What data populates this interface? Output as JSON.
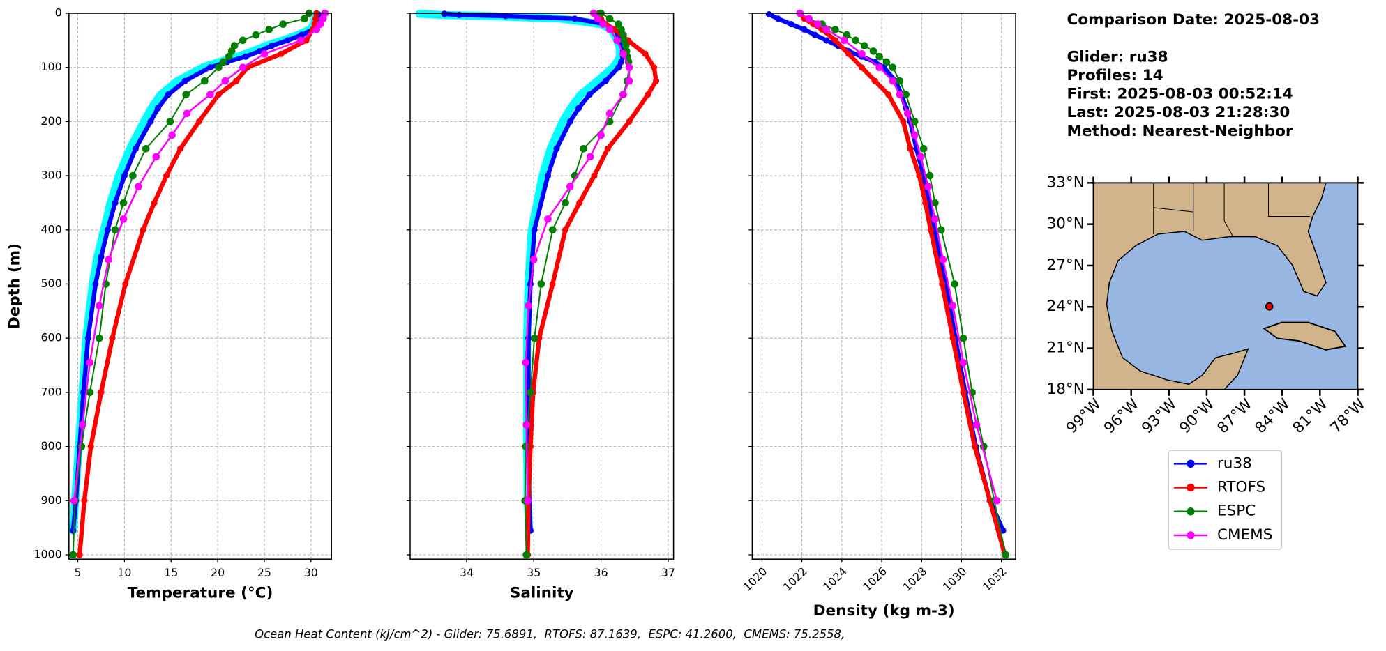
{
  "chart_data": [
    {
      "type": "line",
      "xlabel": "Temperature (°C)",
      "ylabel": "Depth (m)",
      "xlim": [
        4.05,
        32.2
      ],
      "ylim": [
        1008,
        0
      ],
      "xticks": [
        5,
        10,
        15,
        20,
        25,
        30
      ],
      "yticks": [
        0,
        100,
        200,
        300,
        400,
        500,
        600,
        700,
        800,
        900,
        1000
      ],
      "ytick_labels": true,
      "grid": true,
      "series": [
        {
          "color": "#00ffff",
          "y": [
            2,
            10,
            20,
            30,
            40,
            50,
            60,
            70,
            80,
            90,
            100,
            125,
            150,
            175,
            200,
            250,
            300,
            350,
            400,
            450,
            500,
            600,
            700,
            800,
            900,
            955
          ],
          "values": [
            30.6,
            30.5,
            30.3,
            29.9,
            28.6,
            27.0,
            25.2,
            23.8,
            22.2,
            20.2,
            18.4,
            15.7,
            13.9,
            12.9,
            12.1,
            10.6,
            9.4,
            8.5,
            7.8,
            7.1,
            6.6,
            5.9,
            5.5,
            5.1,
            4.7,
            4.5
          ]
        },
        {
          "name": "ru38",
          "color": "#0000ff",
          "y": [
            2,
            10,
            20,
            30,
            40,
            50,
            60,
            70,
            80,
            90,
            100,
            125,
            150,
            175,
            200,
            250,
            300,
            350,
            400,
            450,
            500,
            600,
            700,
            800,
            900,
            955
          ],
          "values": [
            30.8,
            30.7,
            30.5,
            30.2,
            29.0,
            27.5,
            25.8,
            24.5,
            23.0,
            21.0,
            19.2,
            16.5,
            14.7,
            13.6,
            12.8,
            11.2,
            10.0,
            9.0,
            8.2,
            7.5,
            6.9,
            6.1,
            5.6,
            5.2,
            4.8,
            4.5
          ]
        },
        {
          "name": "RTOFS",
          "color": "#ff0000",
          "y": [
            0,
            10,
            20,
            30,
            50,
            75,
            100,
            125,
            150,
            200,
            250,
            300,
            350,
            400,
            500,
            600,
            700,
            800,
            900,
            1000
          ],
          "values": [
            30.6,
            30.5,
            30.4,
            30.2,
            29.5,
            26.8,
            23.2,
            22.0,
            20.1,
            18.0,
            16.0,
            14.5,
            13.2,
            12.0,
            10.1,
            8.7,
            7.5,
            6.4,
            5.7,
            5.2
          ]
        },
        {
          "name": "ESPC",
          "color": "#008000",
          "y": [
            0,
            10,
            20,
            30,
            40,
            50,
            60,
            70,
            80,
            90,
            100,
            125,
            150,
            200,
            250,
            300,
            350,
            400,
            500,
            600,
            700,
            800,
            900,
            1000
          ],
          "values": [
            29.8,
            29.3,
            27.0,
            25.5,
            24.1,
            22.7,
            21.8,
            21.5,
            21.2,
            20.6,
            20.1,
            18.6,
            16.6,
            14.9,
            12.3,
            10.9,
            9.9,
            9.0,
            8.0,
            7.3,
            6.3,
            5.4,
            4.7,
            4.5
          ]
        },
        {
          "name": "CMEMS",
          "color": "#ff00ff",
          "y": [
            0,
            10,
            20,
            30,
            50,
            75,
            100,
            125,
            150,
            185,
            225,
            265,
            320,
            380,
            455,
            540,
            645,
            760,
            900
          ],
          "values": [
            31.5,
            31.3,
            31.0,
            30.6,
            28.9,
            25.0,
            22.7,
            20.8,
            19.2,
            16.7,
            15.1,
            13.4,
            11.5,
            9.9,
            8.3,
            7.3,
            6.3,
            5.5,
            4.6
          ]
        }
      ]
    },
    {
      "type": "line",
      "xlabel": "Salinity",
      "xlim": [
        33.16,
        37.08
      ],
      "ylim": [
        1008,
        0
      ],
      "xticks": [
        34,
        35,
        36,
        37
      ],
      "yticks": [
        0,
        100,
        200,
        300,
        400,
        500,
        600,
        700,
        800,
        900,
        1000
      ],
      "ytick_labels": false,
      "grid": true,
      "series": [
        {
          "color": "#00ffff",
          "y": [
            1,
            3,
            5,
            10,
            20,
            30,
            40,
            50,
            60,
            70,
            80,
            90,
            100,
            125,
            150,
            175,
            200,
            250,
            300,
            400,
            500,
            600,
            700,
            800,
            900,
            955
          ],
          "values": [
            33.3,
            33.6,
            34.3,
            35.4,
            36.0,
            36.15,
            36.2,
            36.24,
            36.27,
            36.28,
            36.28,
            36.24,
            36.18,
            35.95,
            35.7,
            35.55,
            35.43,
            35.25,
            35.13,
            34.97,
            34.92,
            34.9,
            34.9,
            34.9,
            34.91,
            34.93
          ]
        },
        {
          "name": "ru38",
          "color": "#0000ff",
          "y": [
            1,
            3,
            5,
            10,
            20,
            30,
            40,
            50,
            60,
            70,
            80,
            90,
            100,
            125,
            150,
            175,
            200,
            250,
            300,
            400,
            500,
            600,
            700,
            800,
            900,
            955
          ],
          "values": [
            33.67,
            33.89,
            34.58,
            35.61,
            36.07,
            36.2,
            36.26,
            36.29,
            36.32,
            36.33,
            36.33,
            36.3,
            36.26,
            36.07,
            35.83,
            35.67,
            35.54,
            35.34,
            35.21,
            35.01,
            34.95,
            34.92,
            34.92,
            34.92,
            34.93,
            34.95
          ]
        },
        {
          "name": "RTOFS",
          "color": "#ff0000",
          "y": [
            0,
            10,
            20,
            30,
            50,
            75,
            100,
            125,
            150,
            200,
            250,
            300,
            350,
            400,
            500,
            600,
            700,
            800,
            900,
            1000
          ],
          "values": [
            35.97,
            36.0,
            36.07,
            36.2,
            36.4,
            36.66,
            36.79,
            36.82,
            36.7,
            36.42,
            36.1,
            35.9,
            35.68,
            35.47,
            35.28,
            35.08,
            34.99,
            34.95,
            34.92,
            34.91
          ]
        },
        {
          "name": "ESPC",
          "color": "#008000",
          "y": [
            0,
            10,
            20,
            30,
            40,
            50,
            60,
            70,
            80,
            90,
            100,
            125,
            150,
            200,
            250,
            300,
            350,
            400,
            500,
            600,
            700,
            800,
            900,
            1000
          ],
          "values": [
            36.0,
            36.13,
            36.26,
            36.3,
            36.33,
            36.34,
            36.37,
            36.38,
            36.39,
            36.41,
            36.42,
            36.39,
            36.33,
            36.13,
            35.74,
            35.61,
            35.47,
            35.28,
            35.11,
            35.01,
            34.95,
            34.88,
            34.87,
            34.89
          ]
        },
        {
          "name": "CMEMS",
          "color": "#ff00ff",
          "y": [
            0,
            10,
            20,
            30,
            50,
            75,
            100,
            125,
            150,
            185,
            225,
            265,
            320,
            380,
            455,
            540,
            645,
            760,
            900
          ],
          "values": [
            35.89,
            35.95,
            36.03,
            36.13,
            36.24,
            36.33,
            36.42,
            36.42,
            36.33,
            36.13,
            36.0,
            35.84,
            35.54,
            35.21,
            35.0,
            34.92,
            34.88,
            34.89,
            34.91
          ]
        }
      ]
    },
    {
      "type": "line",
      "xlabel": "Density (kg m-3)",
      "xlim": [
        1019.51,
        1032.71
      ],
      "ylim": [
        1008,
        0
      ],
      "xticks": [
        1020,
        1022,
        1024,
        1026,
        1028,
        1030,
        1032
      ],
      "xtick_rotation": 45,
      "yticks": [
        0,
        100,
        200,
        300,
        400,
        500,
        600,
        700,
        800,
        900,
        1000
      ],
      "ytick_labels": false,
      "grid": true,
      "series": [
        {
          "name": "ru38",
          "color": "#0000ff",
          "y": [
            2,
            10,
            20,
            30,
            40,
            50,
            60,
            70,
            80,
            90,
            100,
            125,
            150,
            175,
            200,
            250,
            300,
            350,
            400,
            450,
            500,
            600,
            700,
            800,
            900,
            955
          ],
          "values": [
            1020.35,
            1020.8,
            1021.46,
            1022.12,
            1022.65,
            1023.23,
            1023.81,
            1024.34,
            1025.0,
            1025.66,
            1026.11,
            1026.68,
            1026.99,
            1027.21,
            1027.43,
            1027.74,
            1028.1,
            1028.41,
            1028.67,
            1028.94,
            1029.2,
            1029.69,
            1030.18,
            1030.71,
            1031.42,
            1032.08
          ]
        },
        {
          "name": "RTOFS",
          "color": "#ff0000",
          "y": [
            0,
            10,
            20,
            30,
            50,
            75,
            100,
            125,
            150,
            200,
            250,
            300,
            350,
            400,
            500,
            600,
            700,
            800,
            900,
            1000
          ],
          "values": [
            1021.9,
            1022.12,
            1022.57,
            1023.01,
            1023.67,
            1024.34,
            1025.0,
            1025.66,
            1026.33,
            1027.08,
            1027.43,
            1027.88,
            1028.19,
            1028.45,
            1029.03,
            1029.56,
            1030.09,
            1030.66,
            1031.42,
            1032.17
          ]
        },
        {
          "name": "ESPC",
          "color": "#008000",
          "y": [
            0,
            10,
            20,
            30,
            40,
            50,
            60,
            70,
            80,
            90,
            100,
            125,
            150,
            200,
            250,
            300,
            350,
            400,
            500,
            600,
            700,
            800,
            900,
            1000
          ],
          "values": [
            1021.9,
            1022.35,
            1023.01,
            1023.67,
            1024.25,
            1024.69,
            1025.13,
            1025.58,
            1025.88,
            1026.24,
            1026.55,
            1026.9,
            1027.21,
            1027.65,
            1028.1,
            1028.41,
            1028.67,
            1028.98,
            1029.65,
            1030.09,
            1030.53,
            1031.11,
            1031.64,
            1032.21
          ]
        },
        {
          "name": "CMEMS",
          "color": "#ff00ff",
          "y": [
            0,
            10,
            20,
            30,
            50,
            75,
            100,
            125,
            150,
            185,
            225,
            265,
            320,
            380,
            455,
            540,
            645,
            760,
            900
          ],
          "values": [
            1021.9,
            1022.35,
            1022.79,
            1023.23,
            1024.12,
            1025.0,
            1025.88,
            1026.55,
            1026.9,
            1027.3,
            1027.65,
            1027.96,
            1028.32,
            1028.67,
            1029.07,
            1029.56,
            1030.09,
            1030.75,
            1031.77
          ]
        }
      ]
    }
  ],
  "info": [
    "Comparison Date: 2025-08-03",
    "Glider: ru38",
    "Profiles: 14",
    "First: 2025-08-03 00:52:14",
    "Last: 2025-08-03 21:28:30",
    "Method: Nearest-Neighbor"
  ],
  "map": {
    "lat_labels": [
      "33°N",
      "30°N",
      "27°N",
      "24°N",
      "21°N",
      "18°N"
    ],
    "lon_labels": [
      "99°W",
      "96°W",
      "93°W",
      "90°W",
      "87°W",
      "84°W",
      "81°W",
      "78°W"
    ]
  },
  "caption": "Ocean Heat Content (kJ/cm^2) - Glider: 75.6891,  RTOFS: 87.1639,  ESPC: 41.2600,  CMEMS: 75.2558,"
}
